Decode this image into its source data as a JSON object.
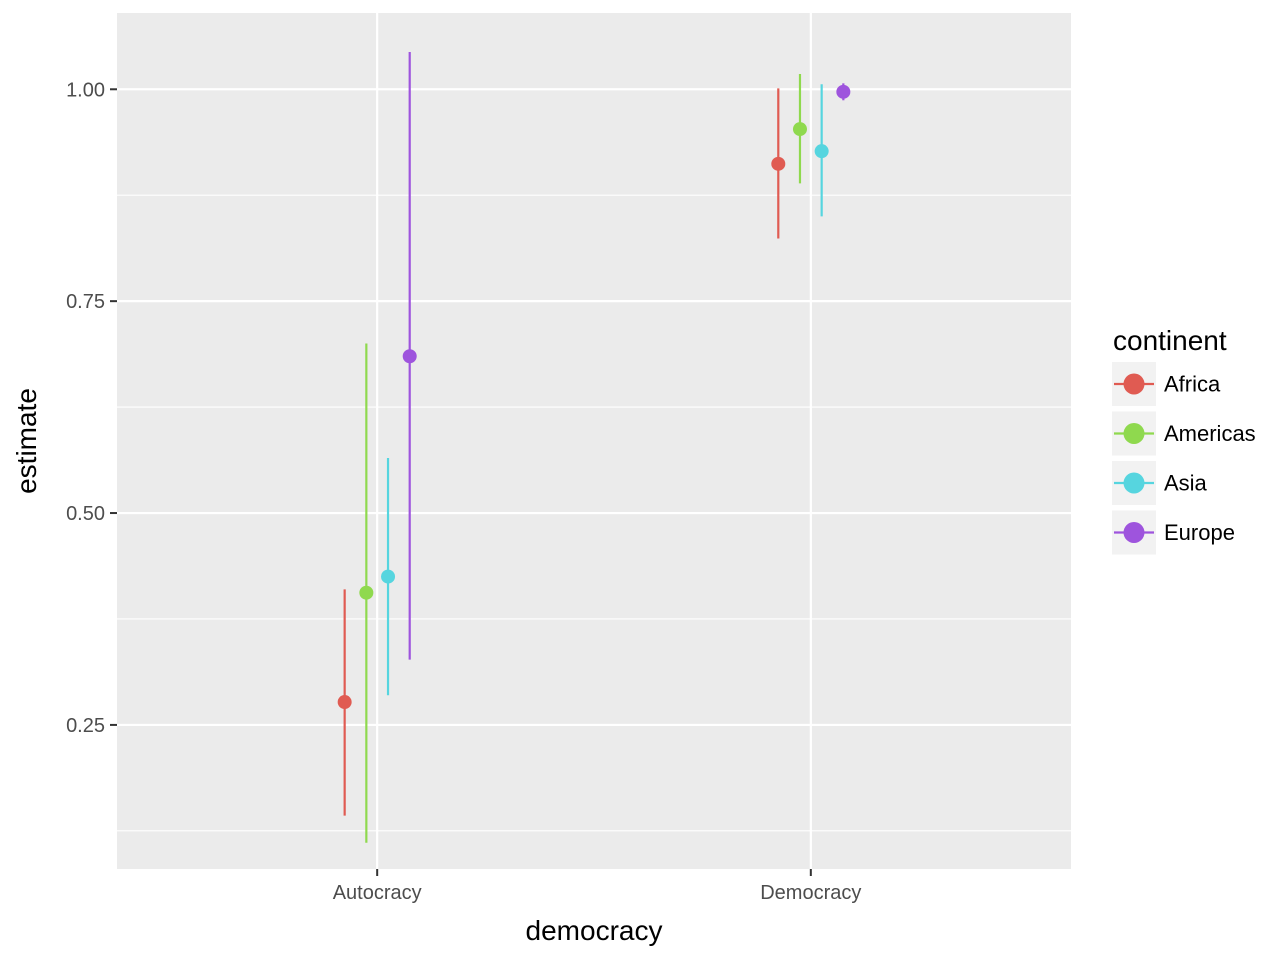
{
  "chart_data": {
    "type": "scatter",
    "subtype": "pointrange",
    "xlabel": "democracy",
    "ylabel": "estimate",
    "categories": [
      "Autocracy",
      "Democracy"
    ],
    "ylim": [
      0.08,
      1.09
    ],
    "yticks": [
      0.25,
      0.5,
      0.75,
      1.0
    ],
    "ytick_labels": [
      "0.25",
      "0.50",
      "0.75",
      "1.00"
    ],
    "grid": true,
    "legend": {
      "title": "continent",
      "position": "right"
    },
    "series": [
      {
        "name": "Africa",
        "color": "#e05b52",
        "values": [
          0.277,
          0.912
        ],
        "lower": [
          0.143,
          0.824
        ],
        "upper": [
          0.41,
          1.001
        ]
      },
      {
        "name": "Americas",
        "color": "#8fd94e",
        "values": [
          0.406,
          0.953
        ],
        "lower": [
          0.111,
          0.889
        ],
        "upper": [
          0.7,
          1.018
        ]
      },
      {
        "name": "Asia",
        "color": "#56d5df",
        "values": [
          0.425,
          0.927
        ],
        "lower": [
          0.285,
          0.85
        ],
        "upper": [
          0.565,
          1.006
        ]
      },
      {
        "name": "Europe",
        "color": "#9e54dd",
        "values": [
          0.685,
          0.997
        ],
        "lower": [
          0.327,
          0.987
        ],
        "upper": [
          1.044,
          1.007
        ]
      }
    ]
  }
}
